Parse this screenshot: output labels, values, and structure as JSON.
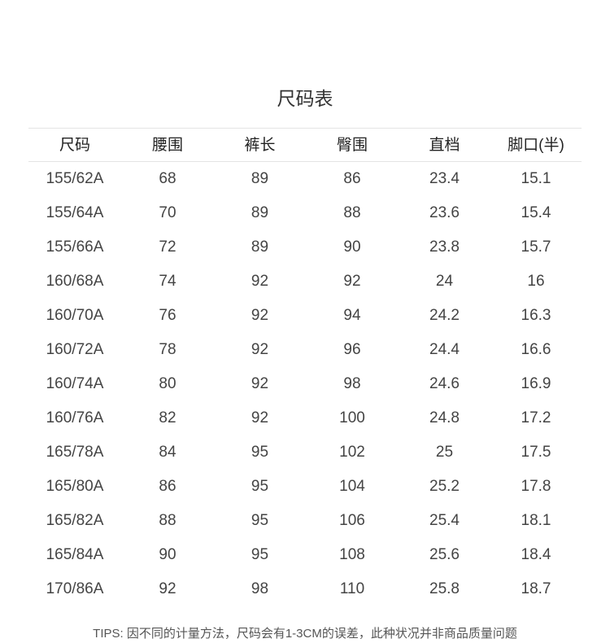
{
  "title": "尺码表",
  "table": {
    "headers": [
      "尺码",
      "腰围",
      "裤长",
      "臀围",
      "直档",
      "脚口(半)"
    ],
    "rows": [
      [
        "155/62A",
        "68",
        "89",
        "86",
        "23.4",
        "15.1"
      ],
      [
        "155/64A",
        "70",
        "89",
        "88",
        "23.6",
        "15.4"
      ],
      [
        "155/66A",
        "72",
        "89",
        "90",
        "23.8",
        "15.7"
      ],
      [
        "160/68A",
        "74",
        "92",
        "92",
        "24",
        "16"
      ],
      [
        "160/70A",
        "76",
        "92",
        "94",
        "24.2",
        "16.3"
      ],
      [
        "160/72A",
        "78",
        "92",
        "96",
        "24.4",
        "16.6"
      ],
      [
        "160/74A",
        "80",
        "92",
        "98",
        "24.6",
        "16.9"
      ],
      [
        "160/76A",
        "82",
        "92",
        "100",
        "24.8",
        "17.2"
      ],
      [
        "165/78A",
        "84",
        "95",
        "102",
        "25",
        "17.5"
      ],
      [
        "165/80A",
        "86",
        "95",
        "104",
        "25.2",
        "17.8"
      ],
      [
        "165/82A",
        "88",
        "95",
        "106",
        "25.4",
        "18.1"
      ],
      [
        "165/84A",
        "90",
        "95",
        "108",
        "25.6",
        "18.4"
      ],
      [
        "170/86A",
        "92",
        "98",
        "110",
        "25.8",
        "18.7"
      ]
    ]
  },
  "tips": "TIPS: 因不同的计量方法，尺码会有1-3CM的误差，此种状况并非商品质量问题"
}
